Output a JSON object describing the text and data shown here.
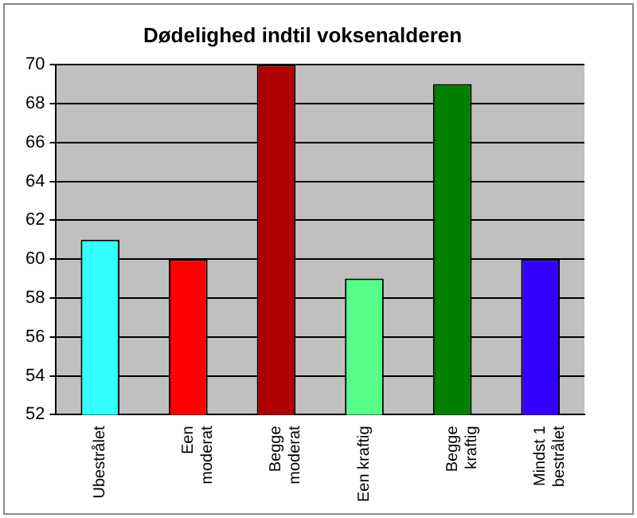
{
  "chart_data": {
    "type": "bar",
    "title": "Dødelighed indtil voksenalderen",
    "categories": [
      "Ubestrålet",
      "Een\nmoderat",
      "Begge\nmoderat",
      "Een kraftig",
      "Begge\nkraftig",
      "Mindst 1\nbestrålet"
    ],
    "values": [
      61,
      60,
      70,
      59,
      69,
      60
    ],
    "colors": [
      "#33ffff",
      "#ff0000",
      "#b00000",
      "#55ff88",
      "#008000",
      "#3300ff"
    ],
    "ylim": [
      52,
      70
    ],
    "yticks": [
      52,
      54,
      56,
      58,
      60,
      62,
      64,
      66,
      68,
      70
    ],
    "grid": "y",
    "legend": false
  }
}
